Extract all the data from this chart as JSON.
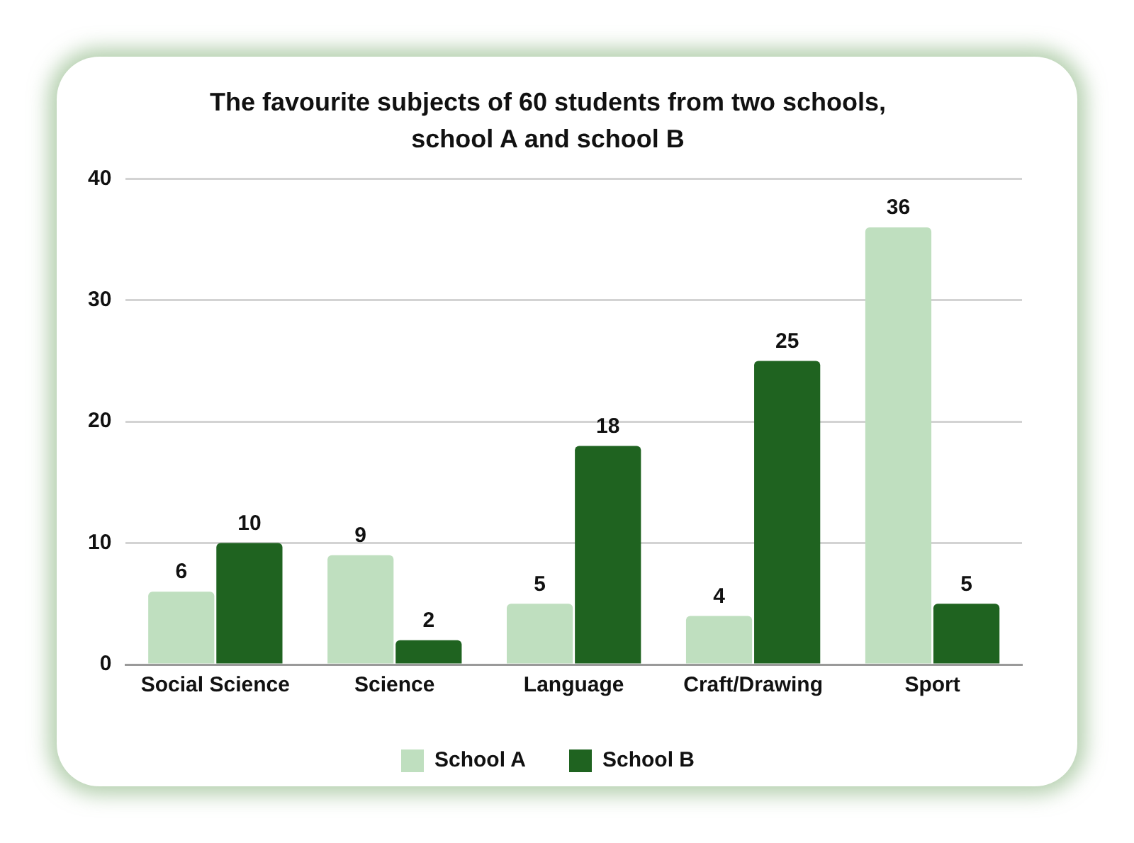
{
  "chart_data": {
    "type": "bar",
    "title": "The favourite subjects of 60 students from two schools, school A and school B",
    "categories": [
      "Social Science",
      "Science",
      "Language",
      "Craft/Drawing",
      "Sport"
    ],
    "series": [
      {
        "name": "School A",
        "color": "#bfdfbf",
        "values": [
          6,
          9,
          5,
          4,
          36
        ]
      },
      {
        "name": "School B",
        "color": "#1f6320",
        "values": [
          10,
          2,
          18,
          25,
          5
        ]
      }
    ],
    "ylim": [
      0,
      40
    ],
    "yticks": [
      0,
      10,
      20,
      30,
      40
    ],
    "grid": "y",
    "legend": "bottom",
    "data_labels": true
  }
}
